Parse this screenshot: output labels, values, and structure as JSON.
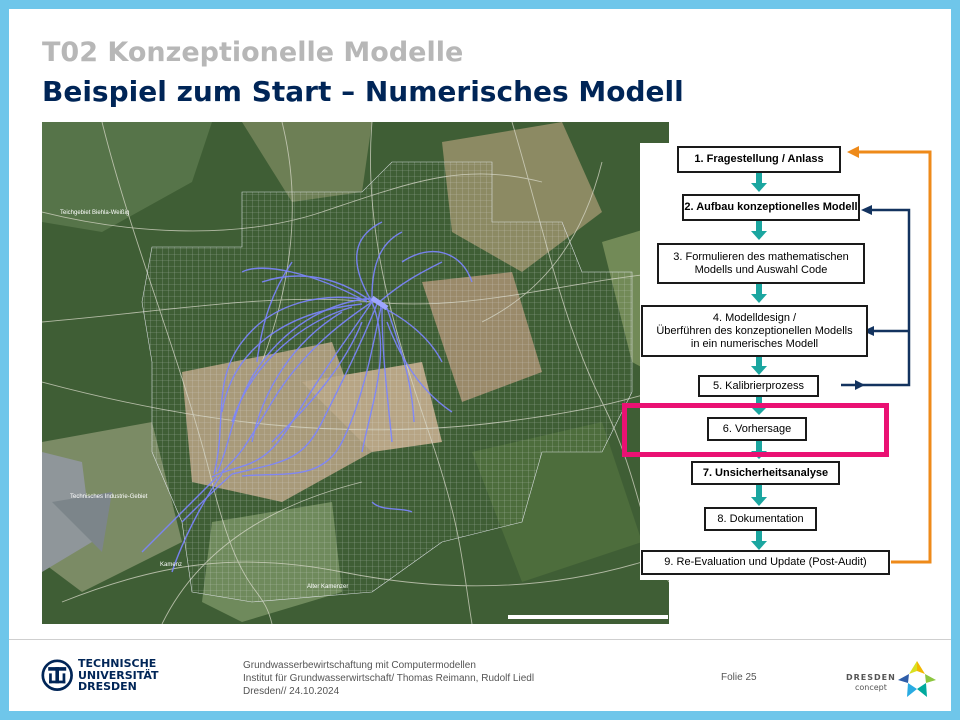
{
  "header": {
    "title_main": "T02 Konzeptionelle Modelle",
    "title_sub": "Beispiel zum Start – Numerisches Modell"
  },
  "map": {
    "labels": [
      "Teichgebiet Biehla-Weißig",
      "Technisches Industrie-Gebiet",
      "Alter Kamenzer",
      "Kamenz"
    ]
  },
  "flowchart": {
    "steps": [
      {
        "label": "1. Fragestellung / Anlass"
      },
      {
        "label": "2. Aufbau konzeptionelles Modell"
      },
      {
        "label_line1": "3. Formulieren des mathematischen",
        "label_line2": "Modells und Auswahl Code"
      },
      {
        "label_line1": "4. Modelldesign /",
        "label_line2": "Überführen des konzeptionellen Modells",
        "label_line3": "in ein numerisches Modell"
      },
      {
        "label": "5. Kalibrierprozess"
      },
      {
        "label": "6. Vorhersage"
      },
      {
        "label": "7. Unsicherheitsanalyse"
      },
      {
        "label": "8. Dokumentation"
      },
      {
        "label": "9. Re-Evaluation und Update (Post-Audit)"
      }
    ],
    "highlighted_step": "6. Vorhersage",
    "colors": {
      "arrow": "#1ba6a0",
      "feedback_outer": "#ee8a1a",
      "feedback_inner": "#13335f",
      "highlight": "#ea1173"
    }
  },
  "footer": {
    "university_line1": "TECHNISCHE",
    "university_line2": "UNIVERSITÄT",
    "university_line3": "DRESDEN",
    "course": "Grundwasserbewirtschaftung mit Computermodellen",
    "institute": "Institut für Grundwasserwirtschaft/ Thomas Reimann, Rudolf Liedl",
    "date": "Dresden// 24.10.2024",
    "slide": "Folie 25",
    "partner_line1": "DRESDEN",
    "partner_line2": "concept"
  }
}
